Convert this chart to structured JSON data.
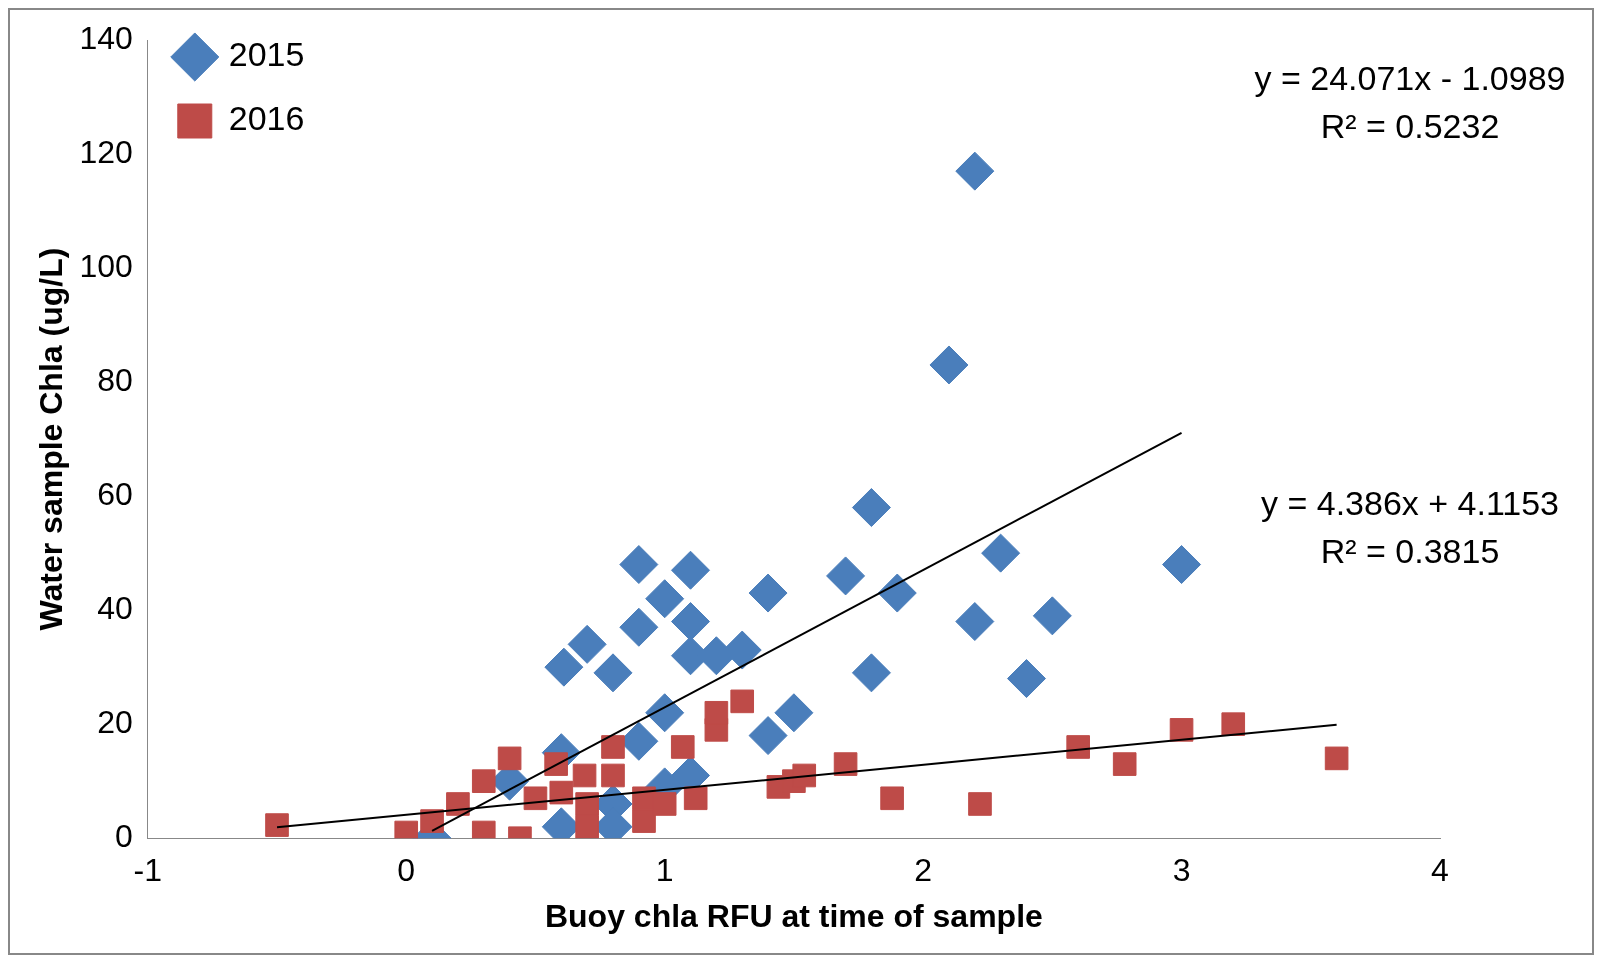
{
  "chart_data": {
    "type": "scatter",
    "xlabel": "Buoy chla RFU at time of sample",
    "ylabel": "Water sample Chla (ug/L)",
    "xlim": [
      -1,
      4
    ],
    "xticks": [
      -1,
      0,
      1,
      2,
      3,
      4
    ],
    "ylim": [
      0,
      140
    ],
    "yticks": [
      0,
      20,
      40,
      60,
      80,
      100,
      120,
      140
    ],
    "grid": false,
    "legend": "top left",
    "annotations": [
      "y = 24.071x - 1.0989",
      "R² = 0.5232",
      "y = 4.386x + 4.1153",
      "R² = 0.3815"
    ],
    "series": [
      {
        "name": "2015",
        "color": "#4a7ebb",
        "marker": "diamond",
        "x": [
          0.61,
          0.7,
          0.8,
          0.9,
          0.9,
          1.0,
          1.1,
          1.1,
          1.1,
          1.2,
          1.3,
          1.4,
          1.4,
          1.5,
          1.7,
          1.8,
          1.8,
          1.9,
          2.1,
          2.2,
          2.2,
          2.3,
          2.4,
          2.5,
          3.0,
          1.0,
          0.9,
          1.1,
          0.6,
          0.8,
          0.8,
          0.6,
          1.0,
          0.1,
          0.4
        ],
        "values": [
          30,
          34,
          29,
          48,
          37,
          42,
          47,
          38,
          32,
          32,
          33,
          43,
          18,
          22,
          46,
          58,
          29,
          43,
          83,
          117,
          38,
          50,
          28,
          39,
          48,
          22,
          17,
          11,
          15,
          6,
          2,
          2,
          9,
          0,
          10
        ]
      },
      {
        "name": "2016",
        "color": "#be4b48",
        "marker": "square",
        "x": [
          -0.5,
          0,
          0.1,
          0.2,
          0.3,
          0.3,
          0.4,
          0.44,
          0.5,
          0.7,
          0.7,
          0.8,
          0.8,
          0.92,
          0.92,
          1.0,
          1.07,
          1.12,
          1.2,
          1.2,
          1.3,
          1.44,
          1.5,
          1.54,
          1.7,
          1.88,
          2.22,
          2.6,
          2.78,
          3.0,
          3.2,
          3.6,
          0.58,
          0.6,
          0.69
        ],
        "values": [
          2.3,
          1,
          3,
          6,
          10,
          1,
          14,
          0,
          7,
          6,
          2,
          16,
          11,
          7,
          3,
          6,
          16,
          7,
          19,
          22,
          24,
          9,
          10,
          11,
          13,
          7,
          6,
          16,
          13,
          19,
          20,
          14,
          13,
          8,
          11
        ]
      },
      {
        "type": "line",
        "color": "#000000",
        "marker": "none",
        "x": [
          0.1,
          3.0
        ],
        "values": [
          1.3,
          71.1
        ]
      },
      {
        "type": "line",
        "color": "#000000",
        "marker": "none",
        "x": [
          -0.5,
          3.6
        ],
        "values": [
          1.9,
          19.9
        ]
      }
    ]
  }
}
